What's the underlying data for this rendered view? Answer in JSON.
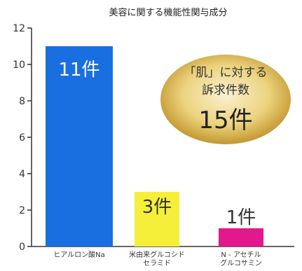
{
  "chart_data": {
    "type": "bar",
    "title": "美容に関する機能性関与成分",
    "categories": [
      [
        "ヒアルロン酸Na"
      ],
      [
        "米由来グルコシド",
        "セラミド"
      ],
      [
        "N - アセチル",
        "グルコサミン"
      ]
    ],
    "values": [
      11,
      3,
      1
    ],
    "bar_labels": [
      "11件",
      "3件",
      "1件"
    ],
    "bar_colors": [
      "#1a6fe0",
      "#f5ef3a",
      "#e2188c"
    ],
    "bar_label_colors": [
      "#ffffff",
      "#333333",
      "#333333"
    ],
    "yticks": [
      "0",
      "2",
      "4",
      "6",
      "8",
      "10",
      "12"
    ],
    "ylim": [
      0,
      12
    ],
    "xlabel": "",
    "ylabel": "",
    "grid": false,
    "callout": {
      "lines": [
        "「肌」に対する",
        "訴求件数"
      ],
      "count": "15件"
    }
  }
}
